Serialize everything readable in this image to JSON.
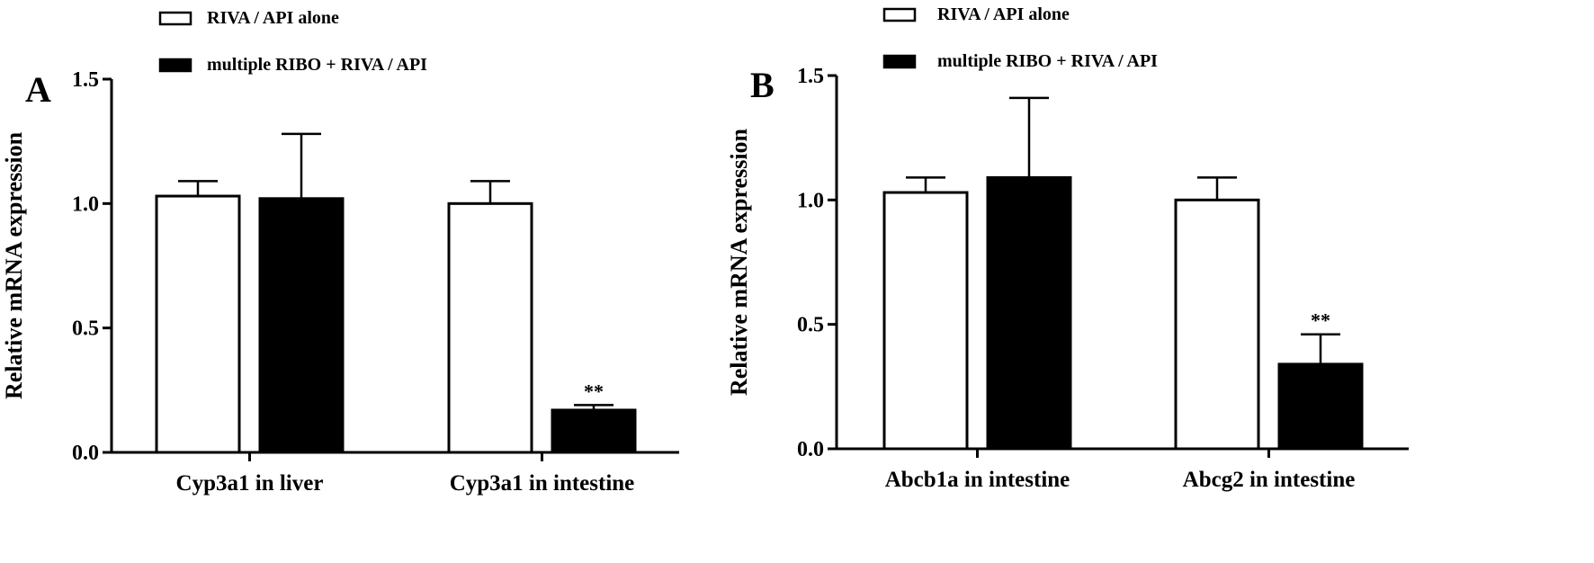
{
  "chart_data": [
    {
      "type": "bar",
      "panel_label": "A",
      "categories": [
        "Cyp3a1 in liver",
        "Cyp3a1 in intestine"
      ],
      "ylabel": "Relative mRNA expression",
      "ylim": [
        0,
        1.5
      ],
      "yticks": [
        "0.0",
        "0.5",
        "1.0",
        "1.5"
      ],
      "legend_position": "top",
      "series": [
        {
          "name": "RIVA / API alone",
          "fill": "#ffffff",
          "stroke": "#000000",
          "values": [
            1.03,
            1.0
          ],
          "errors": [
            0.06,
            0.09
          ]
        },
        {
          "name": "multiple RIBO + RIVA / API",
          "fill": "#000000",
          "stroke": "#000000",
          "values": [
            1.02,
            0.17
          ],
          "errors": [
            0.26,
            0.02
          ]
        }
      ],
      "annotations": [
        {
          "category": 1,
          "series": 1,
          "text": "**"
        }
      ]
    },
    {
      "type": "bar",
      "panel_label": "B",
      "categories": [
        "Abcb1a in intestine",
        "Abcg2 in intestine"
      ],
      "ylabel": "Relative mRNA expression",
      "ylim": [
        0,
        1.5
      ],
      "yticks": [
        "0.0",
        "0.5",
        "1.0",
        "1.5"
      ],
      "legend_position": "top",
      "series": [
        {
          "name": "RIVA / API alone",
          "fill": "#ffffff",
          "stroke": "#000000",
          "values": [
            1.03,
            1.0
          ],
          "errors": [
            0.06,
            0.09
          ]
        },
        {
          "name": "multiple RIBO + RIVA / API",
          "fill": "#000000",
          "stroke": "#000000",
          "values": [
            1.09,
            0.34
          ],
          "errors": [
            0.32,
            0.12
          ]
        }
      ],
      "annotations": [
        {
          "category": 1,
          "series": 1,
          "text": "**"
        }
      ]
    }
  ]
}
